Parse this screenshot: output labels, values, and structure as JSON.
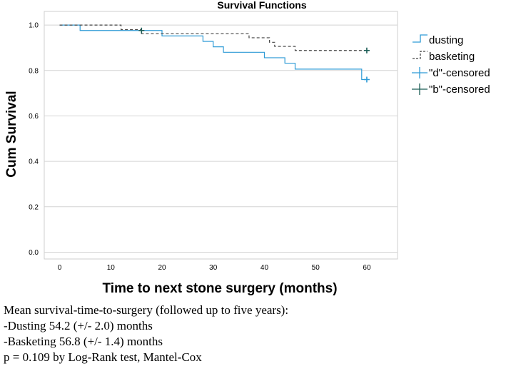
{
  "chart_data": {
    "type": "line",
    "title": "Survival Functions",
    "xlabel": "Time to next stone surgery (months)",
    "ylabel": "Cum Survival",
    "xlim": [
      -3,
      66
    ],
    "ylim": [
      -0.03,
      1.06
    ],
    "x_ticks": [
      0,
      10,
      20,
      30,
      40,
      50,
      60
    ],
    "y_ticks": [
      0.0,
      0.2,
      0.4,
      0.6,
      0.8,
      1.0
    ],
    "x_tick_labels": [
      "0",
      "10",
      "20",
      "30",
      "40",
      "50",
      "60"
    ],
    "y_tick_labels": [
      "0.0",
      "0.2",
      "0.4",
      "0.6",
      "0.8",
      "1.0"
    ],
    "gridlines": "horizontal",
    "legend_position": "outside-right",
    "series": [
      {
        "name": "dusting",
        "style": "solid",
        "color": "#2e9bd6",
        "steps": [
          {
            "x": 0,
            "y": 1.0
          },
          {
            "x": 4,
            "y": 0.976
          },
          {
            "x": 17,
            "y": 0.976
          },
          {
            "x": 20,
            "y": 0.952
          },
          {
            "x": 28,
            "y": 0.928
          },
          {
            "x": 30,
            "y": 0.904
          },
          {
            "x": 32,
            "y": 0.88
          },
          {
            "x": 40,
            "y": 0.856
          },
          {
            "x": 44,
            "y": 0.832
          },
          {
            "x": 46,
            "y": 0.806
          },
          {
            "x": 59,
            "y": 0.76
          },
          {
            "x": 60,
            "y": 0.76
          }
        ],
        "censored": [
          {
            "x": 60,
            "y": 0.76
          }
        ]
      },
      {
        "name": "basketing",
        "style": "dashed",
        "color": "#444444",
        "steps": [
          {
            "x": 0,
            "y": 1.0
          },
          {
            "x": 12,
            "y": 0.98
          },
          {
            "x": 16,
            "y": 0.962
          },
          {
            "x": 37,
            "y": 0.944
          },
          {
            "x": 41,
            "y": 0.924
          },
          {
            "x": 42,
            "y": 0.906
          },
          {
            "x": 46,
            "y": 0.888
          },
          {
            "x": 60,
            "y": 0.888
          }
        ],
        "censored": [
          {
            "x": 16,
            "y": 0.976
          },
          {
            "x": 60,
            "y": 0.888
          }
        ]
      }
    ],
    "legend": [
      {
        "label": "dusting",
        "kind": "step",
        "color": "#2e9bd6"
      },
      {
        "label": "basketing",
        "kind": "dashed-step",
        "color": "#444444"
      },
      {
        "label": "\"d\"-censored",
        "kind": "plus",
        "color": "#2e9bd6"
      },
      {
        "label": "\"b\"-censored",
        "kind": "plus",
        "color": "#1a5c55"
      }
    ]
  },
  "caption": {
    "line1": "Mean survival-time-to-surgery (followed up to five years):",
    "line2": "-Dusting 54.2 (+/- 2.0) months",
    "line3": "-Basketing 56.8 (+/- 1.4) months",
    "line4": "p = 0.109 by Log-Rank test, Mantel-Cox"
  }
}
